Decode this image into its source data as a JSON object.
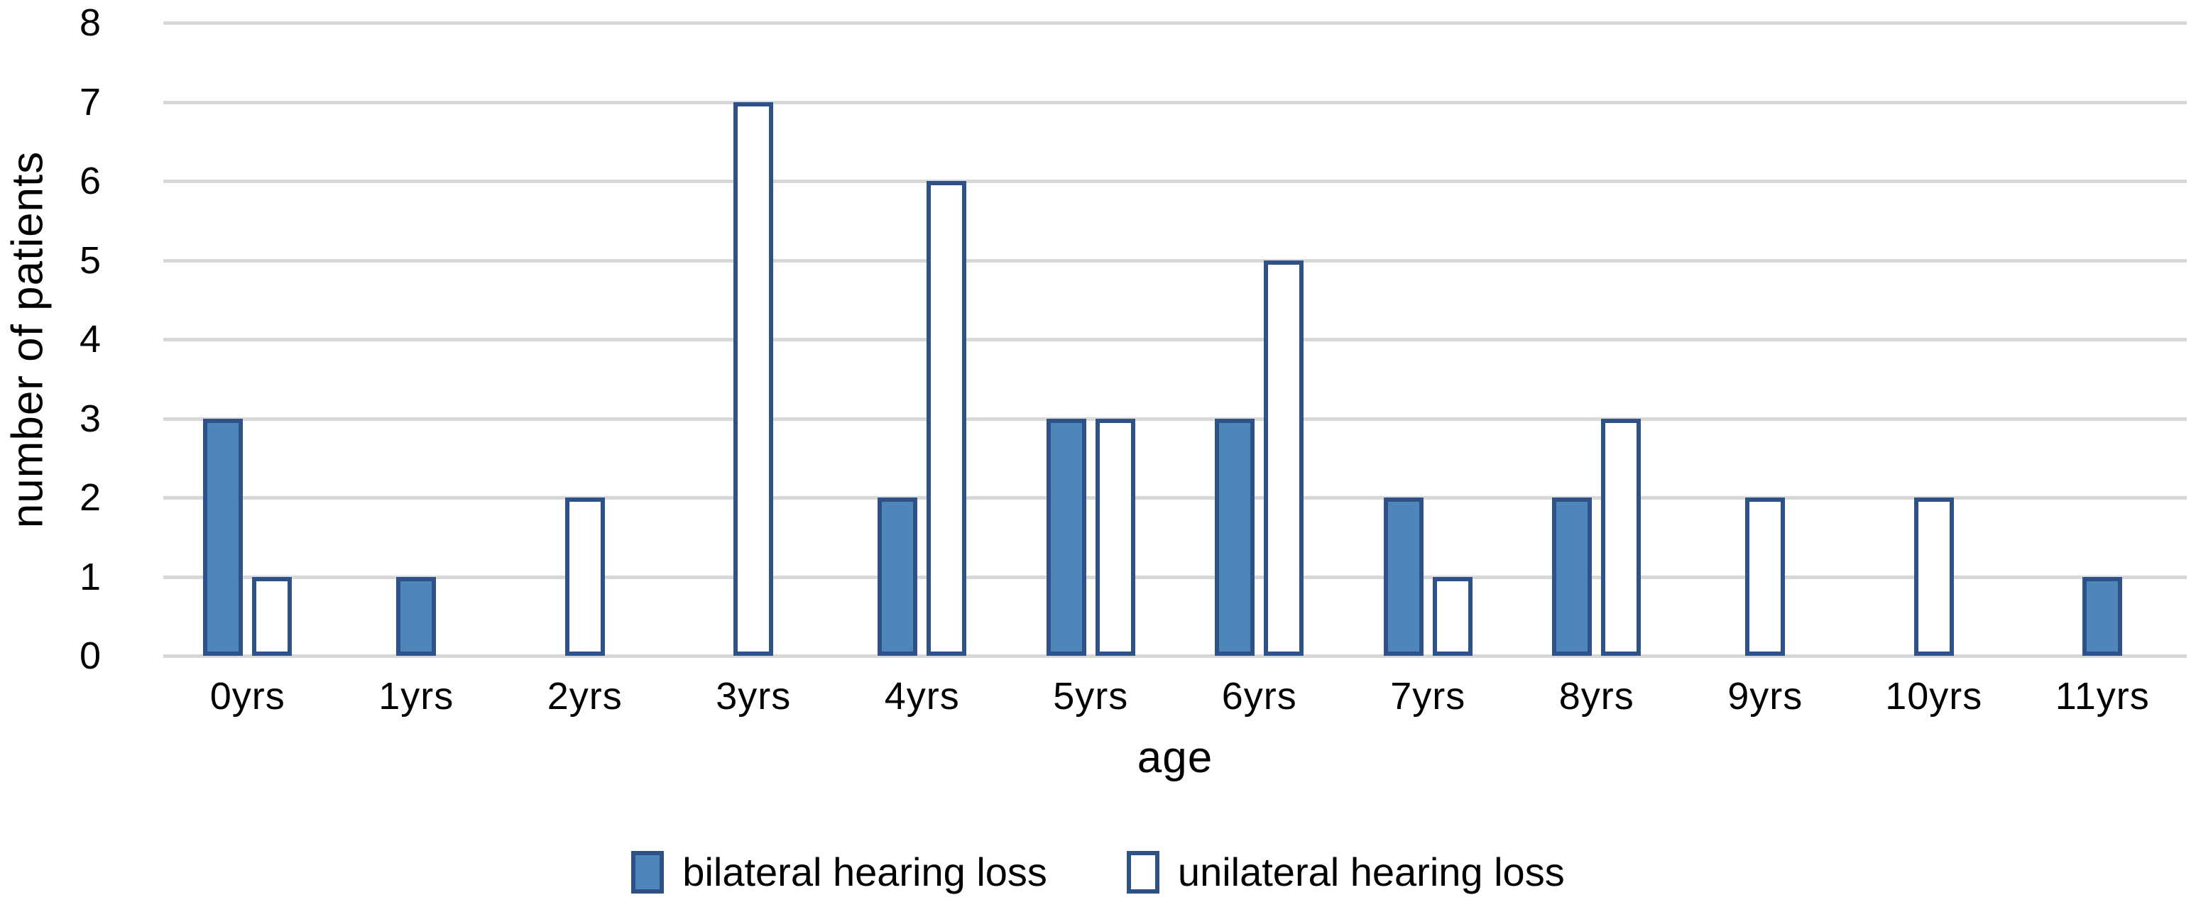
{
  "chart_data": {
    "type": "bar",
    "title": "",
    "xlabel": "age",
    "ylabel": "number of patients",
    "categories": [
      "0yrs",
      "1yrs",
      "2yrs",
      "3yrs",
      "4yrs",
      "5yrs",
      "6yrs",
      "7yrs",
      "8yrs",
      "9yrs",
      "10yrs",
      "11yrs"
    ],
    "series": [
      {
        "name": "bilateral hearing loss",
        "values": [
          3,
          1,
          0,
          0,
          2,
          3,
          3,
          2,
          2,
          0,
          0,
          1
        ],
        "fill": "#4E86BC",
        "border": "#2E5288"
      },
      {
        "name": "unilateral hearing loss",
        "values": [
          1,
          0,
          2,
          7,
          6,
          3,
          5,
          1,
          3,
          2,
          2,
          0
        ],
        "fill": "#FFFFFF",
        "border": "#2E5288"
      }
    ],
    "ylim": [
      0,
      8
    ],
    "y_ticks": [
      "0",
      "1",
      "2",
      "3",
      "4",
      "5",
      "6",
      "7",
      "8"
    ],
    "grid": "horizontal",
    "gridline_color": "#D8D8D8",
    "text_color": "#000000",
    "background_color": "#FFFFFF",
    "legend_position": "bottom",
    "zero_value_bars_hidden": true
  }
}
